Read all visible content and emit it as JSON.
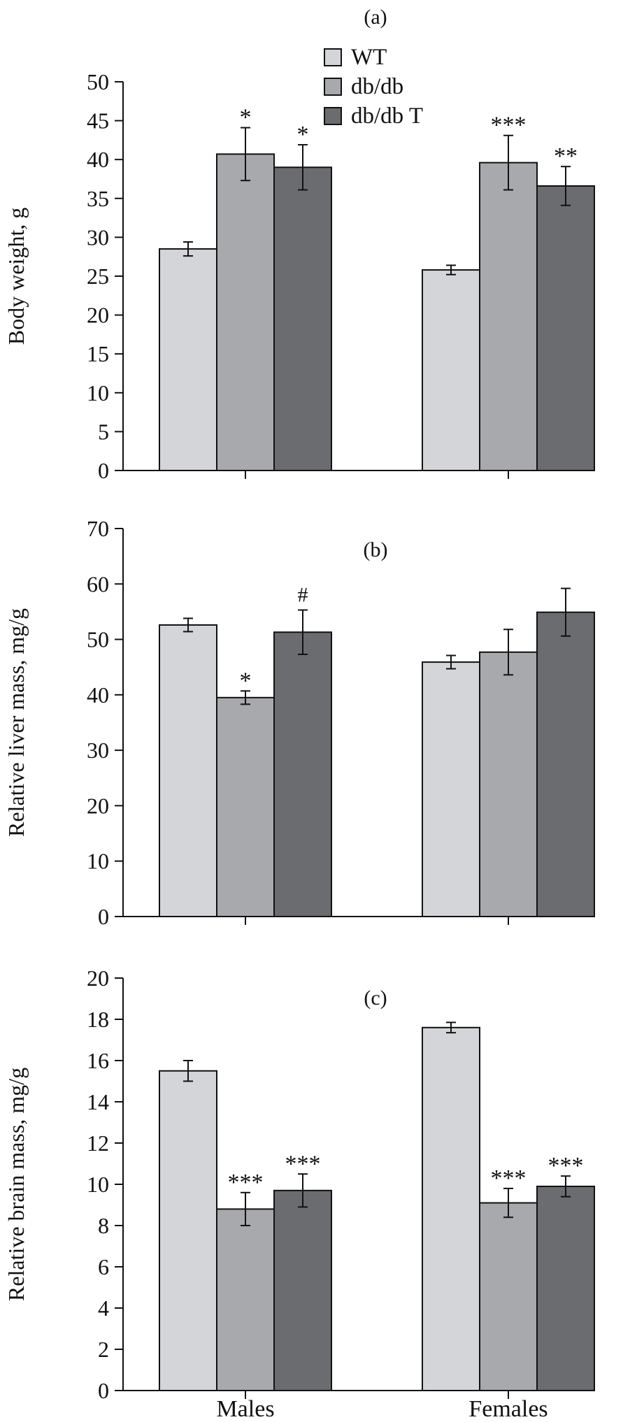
{
  "colors": {
    "WT": "#d4d5d8",
    "db/db": "#a8a9ad",
    "db/db T": "#6b6c70",
    "axis": "#111111"
  },
  "legend": {
    "placement": "top-center",
    "entries": [
      {
        "label": "WT",
        "color": "#d4d5d8"
      },
      {
        "label": "db/db",
        "color": "#a8a9ad"
      },
      {
        "label": "db/db T",
        "color": "#6b6c70"
      }
    ]
  },
  "chart_data": [
    {
      "type": "bar",
      "panel_label": "(a)",
      "ylabel": "Body weight, g",
      "ylim": [
        0,
        50
      ],
      "yticks": [
        0,
        5,
        10,
        15,
        20,
        25,
        30,
        35,
        40,
        45,
        50
      ],
      "categories": [
        "Males",
        "Females"
      ],
      "series": [
        {
          "name": "WT",
          "values": [
            28.5,
            25.8
          ],
          "errors": [
            0.9,
            0.6
          ],
          "annotations": [
            "",
            ""
          ]
        },
        {
          "name": "db/db",
          "values": [
            40.7,
            39.6
          ],
          "errors": [
            3.4,
            3.5
          ],
          "annotations": [
            "*",
            "***"
          ]
        },
        {
          "name": "db/db T",
          "values": [
            39.0,
            36.6
          ],
          "errors": [
            2.9,
            2.5
          ],
          "annotations": [
            "*",
            "**"
          ]
        }
      ]
    },
    {
      "type": "bar",
      "panel_label": "(b)",
      "ylabel": "Relative liver mass, mg/g",
      "ylim": [
        0,
        70
      ],
      "yticks": [
        0,
        10,
        20,
        30,
        40,
        50,
        60,
        70
      ],
      "categories": [
        "Males",
        "Females"
      ],
      "series": [
        {
          "name": "WT",
          "values": [
            52.6,
            45.9
          ],
          "errors": [
            1.2,
            1.2
          ],
          "annotations": [
            "",
            ""
          ]
        },
        {
          "name": "db/db",
          "values": [
            39.5,
            47.7
          ],
          "errors": [
            1.2,
            4.1
          ],
          "annotations": [
            "*",
            ""
          ]
        },
        {
          "name": "db/db T",
          "values": [
            51.3,
            54.9
          ],
          "errors": [
            4.0,
            4.3
          ],
          "annotations": [
            "#",
            ""
          ]
        }
      ]
    },
    {
      "type": "bar",
      "panel_label": "(c)",
      "ylabel": "Relative brain mass, mg/g",
      "ylim": [
        0,
        20
      ],
      "yticks": [
        0,
        2,
        4,
        6,
        8,
        10,
        12,
        14,
        16,
        18,
        20
      ],
      "categories": [
        "Males",
        "Females"
      ],
      "series": [
        {
          "name": "WT",
          "values": [
            15.5,
            17.6
          ],
          "errors": [
            0.5,
            0.25
          ],
          "annotations": [
            "",
            ""
          ]
        },
        {
          "name": "db/db",
          "values": [
            8.8,
            9.1
          ],
          "errors": [
            0.8,
            0.7
          ],
          "annotations": [
            "***",
            "***"
          ]
        },
        {
          "name": "db/db T",
          "values": [
            9.7,
            9.9
          ],
          "errors": [
            0.8,
            0.5
          ],
          "annotations": [
            "***",
            "***"
          ]
        }
      ]
    }
  ]
}
